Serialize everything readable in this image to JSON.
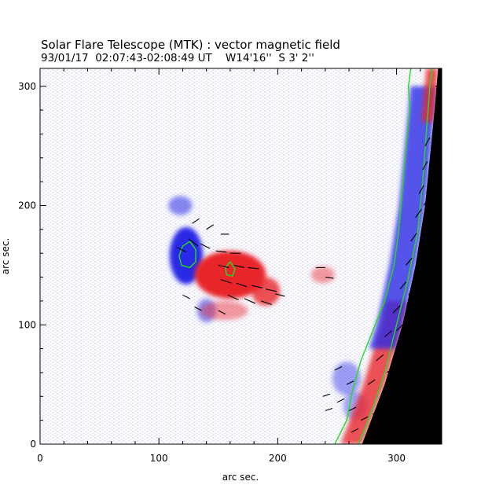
{
  "chart_data": {
    "type": "heatmap",
    "title": "Solar Flare Telescope (MTK) : vector magnetic field",
    "subtitle": "93/01/17  02:07:43-02:08:49 UT    W14'16''  S 3' 2''",
    "xlabel": "arc sec.",
    "ylabel": "arc sec.",
    "xlim": [
      0,
      338
    ],
    "ylim": [
      0,
      315
    ],
    "x_ticks": [
      0,
      100,
      200,
      300
    ],
    "y_ticks": [
      0,
      100,
      200,
      300
    ],
    "colors": {
      "positive_polarity": "#e8282a",
      "negative_polarity": "#2a2ae6",
      "contour": "#22dd22",
      "vector": "#000000",
      "off_disk": "#000000"
    },
    "polarity_regions": [
      {
        "polarity": "negative",
        "cx": 123,
        "cy": 158,
        "rx": 14,
        "ry": 24,
        "strength": 1.0
      },
      {
        "polarity": "negative",
        "cx": 118,
        "cy": 200,
        "rx": 10,
        "ry": 8,
        "strength": 0.55
      },
      {
        "polarity": "negative",
        "cx": 140,
        "cy": 112,
        "rx": 8,
        "ry": 10,
        "strength": 0.5
      },
      {
        "polarity": "positive",
        "cx": 160,
        "cy": 142,
        "rx": 30,
        "ry": 20,
        "strength": 1.0
      },
      {
        "polarity": "positive",
        "cx": 190,
        "cy": 128,
        "rx": 12,
        "ry": 12,
        "strength": 0.8
      },
      {
        "polarity": "positive",
        "cx": 155,
        "cy": 112,
        "rx": 20,
        "ry": 8,
        "strength": 0.45
      },
      {
        "polarity": "positive",
        "cx": 238,
        "cy": 142,
        "rx": 10,
        "ry": 7,
        "strength": 0.45
      },
      {
        "polarity": "negative",
        "cx": 258,
        "cy": 55,
        "rx": 12,
        "ry": 14,
        "strength": 0.45
      },
      {
        "polarity": "negative",
        "cx": 265,
        "cy": 32,
        "rx": 10,
        "ry": 12,
        "strength": 0.4
      }
    ],
    "limb_edge": [
      [
        271,
        0
      ],
      [
        290,
        50
      ],
      [
        305,
        100
      ],
      [
        316,
        150
      ],
      [
        324,
        200
      ],
      [
        329,
        250
      ],
      [
        332,
        280
      ],
      [
        335,
        315
      ]
    ],
    "limb_bands": [
      {
        "polarity": "positive",
        "offset_start": 0,
        "offset_end": 18,
        "y_from": 0,
        "y_to": 120
      },
      {
        "polarity": "negative",
        "offset_start": 0,
        "offset_end": 22,
        "y_from": 80,
        "y_to": 300
      },
      {
        "polarity": "positive",
        "offset_start": 0,
        "offset_end": 10,
        "y_from": 270,
        "y_to": 315
      }
    ],
    "contours": [
      {
        "name": "outer",
        "points": [
          [
            248,
            0
          ],
          [
            258,
            20
          ],
          [
            263,
            45
          ],
          [
            270,
            70
          ],
          [
            280,
            95
          ],
          [
            290,
            120
          ],
          [
            298,
            150
          ],
          [
            302,
            180
          ],
          [
            305,
            215
          ],
          [
            308,
            250
          ],
          [
            311,
            280
          ],
          [
            310,
            300
          ],
          [
            312,
            315
          ]
        ]
      },
      {
        "name": "inner",
        "points": [
          [
            268,
            0
          ],
          [
            280,
            30
          ],
          [
            290,
            60
          ],
          [
            300,
            100
          ],
          [
            310,
            140
          ],
          [
            318,
            180
          ],
          [
            322,
            220
          ],
          [
            325,
            260
          ],
          [
            328,
            300
          ],
          [
            330,
            315
          ]
        ]
      },
      {
        "name": "loop-negative",
        "points": [
          [
            126,
            170
          ],
          [
            120,
            166
          ],
          [
            117,
            158
          ],
          [
            119,
            150
          ],
          [
            126,
            148
          ],
          [
            131,
            153
          ],
          [
            131,
            163
          ],
          [
            126,
            170
          ]
        ]
      },
      {
        "name": "loop-positive",
        "points": [
          [
            160,
            153
          ],
          [
            156,
            148
          ],
          [
            157,
            142
          ],
          [
            162,
            141
          ],
          [
            164,
            147
          ],
          [
            160,
            153
          ]
        ]
      }
    ],
    "vectors": [
      {
        "x": 115,
        "y": 165,
        "dx": 8,
        "dy": -4
      },
      {
        "x": 125,
        "y": 172,
        "dx": 8,
        "dy": -6
      },
      {
        "x": 135,
        "y": 168,
        "dx": 8,
        "dy": -4
      },
      {
        "x": 148,
        "y": 162,
        "dx": 9,
        "dy": -1
      },
      {
        "x": 160,
        "y": 160,
        "dx": 9,
        "dy": 0
      },
      {
        "x": 150,
        "y": 150,
        "dx": 9,
        "dy": -2
      },
      {
        "x": 163,
        "y": 150,
        "dx": 9,
        "dy": -2
      },
      {
        "x": 175,
        "y": 148,
        "dx": 9,
        "dy": -1
      },
      {
        "x": 152,
        "y": 138,
        "dx": 9,
        "dy": -3
      },
      {
        "x": 165,
        "y": 135,
        "dx": 9,
        "dy": -3
      },
      {
        "x": 178,
        "y": 133,
        "dx": 9,
        "dy": -2
      },
      {
        "x": 190,
        "y": 130,
        "dx": 9,
        "dy": -2
      },
      {
        "x": 158,
        "y": 125,
        "dx": 9,
        "dy": -4
      },
      {
        "x": 172,
        "y": 122,
        "dx": 9,
        "dy": -4
      },
      {
        "x": 186,
        "y": 120,
        "dx": 9,
        "dy": -3
      },
      {
        "x": 198,
        "y": 126,
        "dx": 8,
        "dy": -2
      },
      {
        "x": 120,
        "y": 125,
        "dx": 6,
        "dy": -3
      },
      {
        "x": 130,
        "y": 115,
        "dx": 6,
        "dy": -3
      },
      {
        "x": 150,
        "y": 112,
        "dx": 6,
        "dy": -3
      },
      {
        "x": 128,
        "y": 185,
        "dx": 6,
        "dy": 4
      },
      {
        "x": 140,
        "y": 180,
        "dx": 6,
        "dy": 4
      },
      {
        "x": 152,
        "y": 176,
        "dx": 7,
        "dy": 0
      },
      {
        "x": 232,
        "y": 148,
        "dx": 8,
        "dy": 0
      },
      {
        "x": 240,
        "y": 140,
        "dx": 7,
        "dy": -1
      },
      {
        "x": 248,
        "y": 62,
        "dx": 6,
        "dy": 3
      },
      {
        "x": 258,
        "y": 50,
        "dx": 6,
        "dy": 3
      },
      {
        "x": 238,
        "y": 40,
        "dx": 6,
        "dy": 2
      },
      {
        "x": 250,
        "y": 35,
        "dx": 6,
        "dy": 3
      },
      {
        "x": 260,
        "y": 28,
        "dx": 6,
        "dy": 3
      },
      {
        "x": 240,
        "y": 28,
        "dx": 6,
        "dy": 2
      },
      {
        "x": 270,
        "y": 20,
        "dx": 6,
        "dy": 3
      },
      {
        "x": 262,
        "y": 10,
        "dx": 6,
        "dy": 3
      },
      {
        "x": 280,
        "y": 25,
        "dx": 6,
        "dy": 4
      },
      {
        "x": 276,
        "y": 50,
        "dx": 6,
        "dy": 4
      },
      {
        "x": 283,
        "y": 70,
        "dx": 6,
        "dy": 5
      },
      {
        "x": 290,
        "y": 90,
        "dx": 6,
        "dy": 5
      },
      {
        "x": 297,
        "y": 110,
        "dx": 6,
        "dy": 6
      },
      {
        "x": 303,
        "y": 130,
        "dx": 5,
        "dy": 6
      },
      {
        "x": 308,
        "y": 150,
        "dx": 5,
        "dy": 6
      },
      {
        "x": 312,
        "y": 170,
        "dx": 5,
        "dy": 7
      },
      {
        "x": 316,
        "y": 190,
        "dx": 5,
        "dy": 7
      },
      {
        "x": 319,
        "y": 210,
        "dx": 4,
        "dy": 7
      },
      {
        "x": 322,
        "y": 230,
        "dx": 4,
        "dy": 7
      },
      {
        "x": 324,
        "y": 250,
        "dx": 4,
        "dy": 7
      },
      {
        "x": 300,
        "y": 95,
        "dx": 5,
        "dy": 5
      },
      {
        "x": 310,
        "y": 125,
        "dx": 5,
        "dy": 6
      },
      {
        "x": 318,
        "y": 160,
        "dx": 4,
        "dy": 6
      },
      {
        "x": 323,
        "y": 200,
        "dx": 4,
        "dy": 7
      },
      {
        "x": 292,
        "y": 60,
        "dx": 6,
        "dy": 5
      },
      {
        "x": 305,
        "y": 80,
        "dx": 5,
        "dy": 5
      }
    ]
  }
}
